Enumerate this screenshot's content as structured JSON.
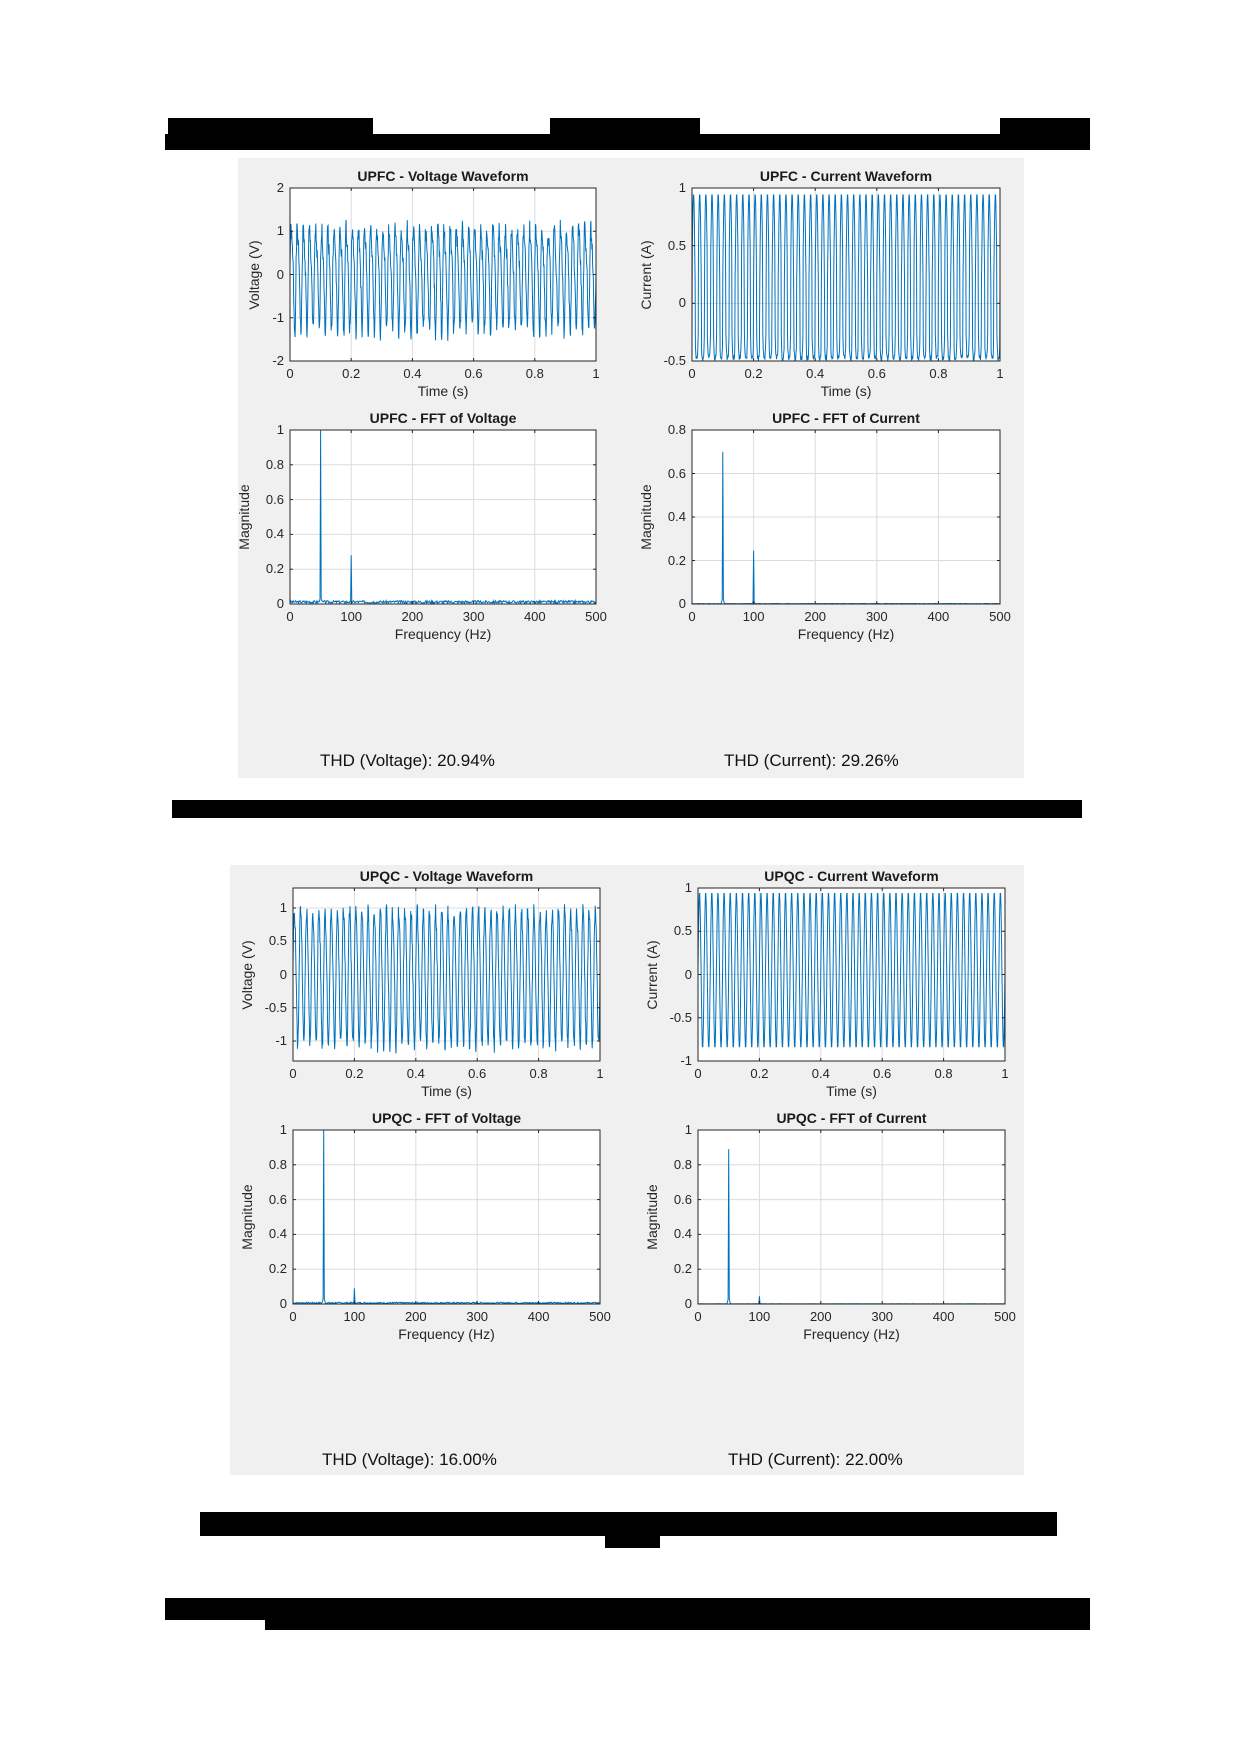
{
  "page": {
    "redacted_header": "[redacted header text]",
    "redacted_caption_1": "[redacted figure caption]",
    "redacted_caption_2": "[redacted figure caption]",
    "redacted_footer": "[redacted footer text]"
  },
  "panels": [
    {
      "name": "UPFC",
      "thd_voltage": "THD (Voltage): 20.94%",
      "thd_current": "THD (Current): 29.26%"
    },
    {
      "name": "UPQC",
      "thd_voltage": "THD (Voltage): 16.00%",
      "thd_current": "THD (Current): 22.00%"
    }
  ],
  "colors": {
    "line": "#0072bd",
    "panel_bg": "#f0f0f0",
    "grid": "#dcdcdc"
  },
  "chart_data": [
    {
      "type": "line",
      "title": "UPFC - Voltage Waveform",
      "xlabel": "Time (s)",
      "ylabel": "Voltage (V)",
      "xlim": [
        0,
        1
      ],
      "ylim": [
        -2,
        2
      ],
      "xticks": [
        "0",
        "0.2",
        "0.4",
        "0.6",
        "0.8",
        "1"
      ],
      "yticks": [
        "-2",
        "-1",
        "0",
        "1",
        "2"
      ],
      "grid": true,
      "series": [
        {
          "name": "voltage",
          "fundamental_hz": 50,
          "amplitude_approx": 1.3,
          "peak_range": [
            -1.7,
            1.6
          ],
          "description": "distorted ~50 Hz sinusoid with 2nd harmonic and noise"
        }
      ]
    },
    {
      "type": "line",
      "title": "UPFC - Current Waveform",
      "xlabel": "Time (s)",
      "ylabel": "Current (A)",
      "xlim": [
        0,
        1
      ],
      "ylim": [
        -0.5,
        1
      ],
      "xticks": [
        "0",
        "0.2",
        "0.4",
        "0.6",
        "0.8",
        "1"
      ],
      "yticks": [
        "-0.5",
        "0",
        "0.5",
        "1"
      ],
      "grid": true,
      "series": [
        {
          "name": "current",
          "fundamental_hz": 50,
          "peak_range": [
            -0.52,
            0.98
          ],
          "description": "~50 Hz periodic waveform, peaks ~0.95, troughs ~-0.48"
        }
      ]
    },
    {
      "type": "line",
      "title": "UPFC - FFT of Voltage",
      "xlabel": "Frequency (Hz)",
      "ylabel": "Magnitude",
      "xlim": [
        0,
        500
      ],
      "ylim": [
        0,
        1
      ],
      "xticks": [
        "0",
        "100",
        "200",
        "300",
        "400",
        "500"
      ],
      "yticks": [
        "0",
        "0.2",
        "0.4",
        "0.6",
        "0.8",
        "1"
      ],
      "grid": true,
      "x": [
        50,
        100
      ],
      "series": [
        {
          "name": "magnitude",
          "peaks": [
            {
              "freq": 50,
              "mag": 1.0
            },
            {
              "freq": 100,
              "mag": 0.28
            }
          ],
          "noise_floor": 0.015
        }
      ]
    },
    {
      "type": "line",
      "title": "UPFC - FFT of Current",
      "xlabel": "Frequency (Hz)",
      "ylabel": "Magnitude",
      "xlim": [
        0,
        500
      ],
      "ylim": [
        0,
        0.8
      ],
      "xticks": [
        "0",
        "100",
        "200",
        "300",
        "400",
        "500"
      ],
      "yticks": [
        "0",
        "0.2",
        "0.4",
        "0.6",
        "0.8"
      ],
      "grid": true,
      "x": [
        50,
        100
      ],
      "series": [
        {
          "name": "magnitude",
          "peaks": [
            {
              "freq": 50,
              "mag": 0.7
            },
            {
              "freq": 100,
              "mag": 0.245
            }
          ],
          "noise_floor": 0.002
        }
      ]
    },
    {
      "type": "line",
      "title": "UPQC - Voltage Waveform",
      "xlabel": "Time (s)",
      "ylabel": "Voltage (V)",
      "xlim": [
        0,
        1
      ],
      "ylim": [
        -1.3,
        1.3
      ],
      "xticks": [
        "0",
        "0.2",
        "0.4",
        "0.6",
        "0.8",
        "1"
      ],
      "yticks": [
        "-1",
        "-0.5",
        "0",
        "0.5",
        "1"
      ],
      "grid": true,
      "series": [
        {
          "name": "voltage",
          "fundamental_hz": 50,
          "amplitude_approx": 1.05,
          "peak_range": [
            -1.25,
            1.25
          ]
        }
      ]
    },
    {
      "type": "line",
      "title": "UPQC - Current Waveform",
      "xlabel": "Time (s)",
      "ylabel": "Current (A)",
      "xlim": [
        0,
        1
      ],
      "ylim": [
        -1,
        1
      ],
      "xticks": [
        "0",
        "0.2",
        "0.4",
        "0.6",
        "0.8",
        "1"
      ],
      "yticks": [
        "-1",
        "-0.5",
        "0",
        "0.5",
        "1"
      ],
      "grid": true,
      "series": [
        {
          "name": "current",
          "fundamental_hz": 50,
          "peak_range": [
            -0.85,
            0.95
          ]
        }
      ]
    },
    {
      "type": "line",
      "title": "UPQC - FFT of Voltage",
      "xlabel": "Frequency (Hz)",
      "ylabel": "Magnitude",
      "xlim": [
        0,
        500
      ],
      "ylim": [
        0,
        1
      ],
      "xticks": [
        "0",
        "100",
        "200",
        "300",
        "400",
        "500"
      ],
      "yticks": [
        "0",
        "0.2",
        "0.4",
        "0.6",
        "0.8",
        "1"
      ],
      "grid": true,
      "x": [
        50,
        100
      ],
      "series": [
        {
          "name": "magnitude",
          "peaks": [
            {
              "freq": 50,
              "mag": 1.0
            },
            {
              "freq": 100,
              "mag": 0.09
            }
          ],
          "noise_floor": 0.008
        }
      ]
    },
    {
      "type": "line",
      "title": "UPQC - FFT of Current",
      "xlabel": "Frequency (Hz)",
      "ylabel": "Magnitude",
      "xlim": [
        0,
        500
      ],
      "ylim": [
        0,
        1
      ],
      "xticks": [
        "0",
        "100",
        "200",
        "300",
        "400",
        "500"
      ],
      "yticks": [
        "0",
        "0.2",
        "0.4",
        "0.6",
        "0.8",
        "1"
      ],
      "grid": true,
      "x": [
        50,
        100
      ],
      "series": [
        {
          "name": "magnitude",
          "peaks": [
            {
              "freq": 50,
              "mag": 0.89
            },
            {
              "freq": 100,
              "mag": 0.045
            }
          ],
          "noise_floor": 0.001
        }
      ]
    }
  ]
}
